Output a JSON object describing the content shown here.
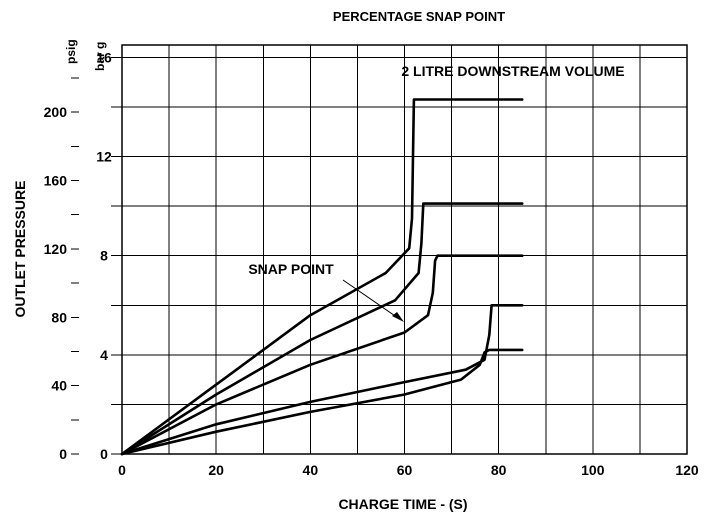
{
  "chart_data": {
    "type": "line",
    "title": "PERCENTAGE SNAP POINT",
    "xlabel": "CHARGE TIME - (S)",
    "ylabel": "OUTLET PRESSURE",
    "y_units": [
      "psig",
      "bar g"
    ],
    "x_ticks": [
      "0",
      "20",
      "40",
      "60",
      "80",
      "100",
      "120"
    ],
    "y_ticks_psig": [
      "0",
      "40",
      "80",
      "120",
      "160",
      "200"
    ],
    "y_ticks_bar": [
      "0",
      "4",
      "8",
      "12",
      "16"
    ],
    "xlim": [
      0,
      120
    ],
    "ylim_bar": [
      0,
      16.5
    ],
    "grid": true,
    "annotations": {
      "volume": "2 LITRE DOWNSTREAM VOLUME",
      "snap_point": "SNAP POINT"
    },
    "series": [
      {
        "values": [
          [
            0,
            0
          ],
          [
            20,
            2.8
          ],
          [
            40,
            5.6
          ],
          [
            56,
            7.3
          ],
          [
            61,
            8.3
          ],
          [
            61.6,
            9.5
          ],
          [
            62,
            14.3
          ],
          [
            85,
            14.3
          ]
        ]
      },
      {
        "values": [
          [
            0,
            0
          ],
          [
            20,
            2.4
          ],
          [
            40,
            4.6
          ],
          [
            58,
            6.2
          ],
          [
            63,
            7.3
          ],
          [
            63.6,
            8.5
          ],
          [
            64,
            10.1
          ],
          [
            85,
            10.1
          ]
        ]
      },
      {
        "values": [
          [
            0,
            0
          ],
          [
            20,
            2.0
          ],
          [
            40,
            3.6
          ],
          [
            60,
            4.9
          ],
          [
            65,
            5.6
          ],
          [
            66,
            6.5
          ],
          [
            66.5,
            7.8
          ],
          [
            67,
            8.0
          ],
          [
            85,
            8.0
          ]
        ]
      },
      {
        "values": [
          [
            0,
            0
          ],
          [
            20,
            1.2
          ],
          [
            40,
            2.1
          ],
          [
            60,
            2.9
          ],
          [
            73,
            3.4
          ],
          [
            77,
            3.8
          ],
          [
            78,
            4.8
          ],
          [
            78.5,
            6.0
          ],
          [
            85,
            6.0
          ]
        ]
      },
      {
        "values": [
          [
            0,
            0
          ],
          [
            20,
            0.9
          ],
          [
            40,
            1.7
          ],
          [
            60,
            2.4
          ],
          [
            72,
            3.0
          ],
          [
            76,
            3.6
          ],
          [
            77,
            4.1
          ],
          [
            78,
            4.2
          ],
          [
            85,
            4.2
          ]
        ]
      }
    ]
  }
}
